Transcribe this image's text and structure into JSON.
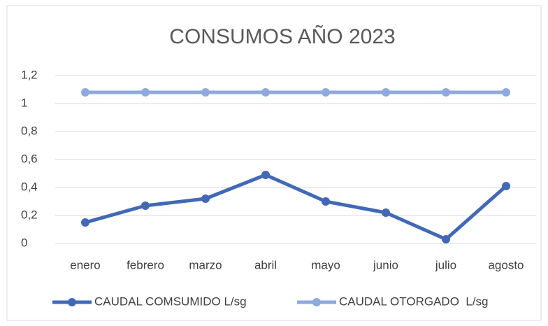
{
  "chart_data": {
    "type": "line",
    "title": "CONSUMOS AÑO 2023",
    "categories": [
      "enero",
      "febrero",
      "marzo",
      "abril",
      "mayo",
      "junio",
      "julio",
      "agosto"
    ],
    "series": [
      {
        "name": "CAUDAL COMSUMIDO L/sg",
        "color": "#4169b5",
        "values": [
          0.15,
          0.27,
          0.32,
          0.49,
          0.3,
          0.22,
          0.03,
          0.41
        ]
      },
      {
        "name": "CAUDAL OTORGADO  L/sg",
        "color": "#8ea9db",
        "values": [
          1.08,
          1.08,
          1.08,
          1.08,
          1.08,
          1.08,
          1.08,
          1.08
        ]
      }
    ],
    "ylim": [
      0,
      1.2
    ],
    "yticks": [
      0,
      {
        "value": 0.2,
        "label": "0,2"
      },
      {
        "value": 0.4,
        "label": "0,4"
      },
      {
        "value": 0.6,
        "label": "0,6"
      },
      {
        "value": 0.8,
        "label": "0,8"
      },
      1,
      {
        "value": 1.2,
        "label": "1,2"
      }
    ],
    "grid": true,
    "legend": "bottom"
  }
}
